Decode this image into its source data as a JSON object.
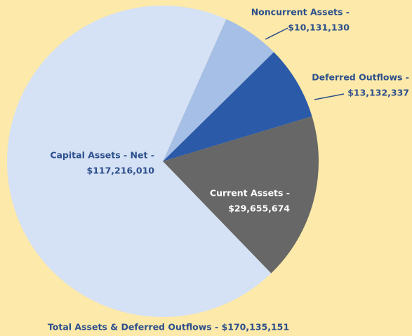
{
  "chart_data": {
    "type": "pie",
    "title": "Total Assets & Deferred Outflows - $170,135,151",
    "categories": [
      "Noncurrent Assets -",
      "Deferred Outflows -",
      "Current Assets -",
      "Capital Assets - Net -"
    ],
    "values": [
      10131130,
      13132337,
      29655674,
      117216010
    ],
    "value_labels": [
      "$10,131,130",
      "$13,132,337",
      "$29,655,674",
      "$117,216,010"
    ],
    "colors": [
      "#a5bfe6",
      "#2b5aa9",
      "#666766",
      "#d5e1f4"
    ]
  }
}
